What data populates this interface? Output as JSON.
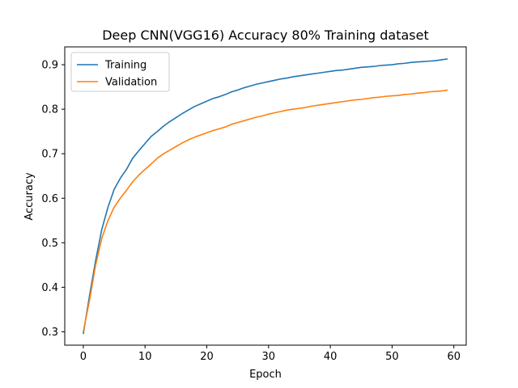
{
  "chart_data": {
    "type": "line",
    "title": "Deep CNN(VGG16) Accuracy 80% Training dataset",
    "xlabel": "Epoch",
    "ylabel": "Accuracy",
    "xlim": [
      -3,
      62
    ],
    "ylim": [
      0.27,
      0.94
    ],
    "grid": false,
    "legend_position": "top-left",
    "x_ticks": [
      0,
      10,
      20,
      30,
      40,
      50,
      60
    ],
    "y_ticks": [
      0.3,
      0.4,
      0.5,
      0.6,
      0.7,
      0.8,
      0.9
    ],
    "x": [
      0,
      1,
      2,
      3,
      4,
      5,
      6,
      7,
      8,
      9,
      10,
      11,
      12,
      13,
      14,
      15,
      16,
      17,
      18,
      19,
      20,
      21,
      22,
      23,
      24,
      25,
      26,
      27,
      28,
      29,
      30,
      31,
      32,
      33,
      34,
      35,
      36,
      37,
      38,
      39,
      40,
      41,
      42,
      43,
      44,
      45,
      46,
      47,
      48,
      49,
      50,
      51,
      52,
      53,
      54,
      55,
      56,
      57,
      58,
      59
    ],
    "series": [
      {
        "name": "Training",
        "color": "#1f77b4",
        "values": [
          0.295,
          0.38,
          0.46,
          0.53,
          0.58,
          0.62,
          0.645,
          0.665,
          0.69,
          0.707,
          0.723,
          0.739,
          0.75,
          0.762,
          0.772,
          0.781,
          0.79,
          0.798,
          0.806,
          0.812,
          0.818,
          0.824,
          0.828,
          0.833,
          0.839,
          0.843,
          0.848,
          0.852,
          0.856,
          0.859,
          0.862,
          0.865,
          0.868,
          0.87,
          0.873,
          0.875,
          0.877,
          0.879,
          0.881,
          0.883,
          0.885,
          0.887,
          0.888,
          0.89,
          0.892,
          0.894,
          0.895,
          0.896,
          0.898,
          0.899,
          0.9,
          0.902,
          0.903,
          0.905,
          0.906,
          0.907,
          0.908,
          0.909,
          0.911,
          0.913
        ]
      },
      {
        "name": "Validation",
        "color": "#ff7f0e",
        "values": [
          0.3,
          0.37,
          0.45,
          0.51,
          0.55,
          0.58,
          0.6,
          0.618,
          0.637,
          0.652,
          0.665,
          0.677,
          0.69,
          0.7,
          0.708,
          0.716,
          0.724,
          0.731,
          0.737,
          0.742,
          0.747,
          0.752,
          0.756,
          0.76,
          0.766,
          0.77,
          0.774,
          0.778,
          0.782,
          0.785,
          0.789,
          0.792,
          0.795,
          0.798,
          0.8,
          0.802,
          0.804,
          0.807,
          0.809,
          0.811,
          0.813,
          0.815,
          0.817,
          0.819,
          0.821,
          0.822,
          0.824,
          0.826,
          0.827,
          0.829,
          0.83,
          0.831,
          0.833,
          0.834,
          0.836,
          0.837,
          0.839,
          0.84,
          0.841,
          0.843
        ]
      }
    ]
  }
}
